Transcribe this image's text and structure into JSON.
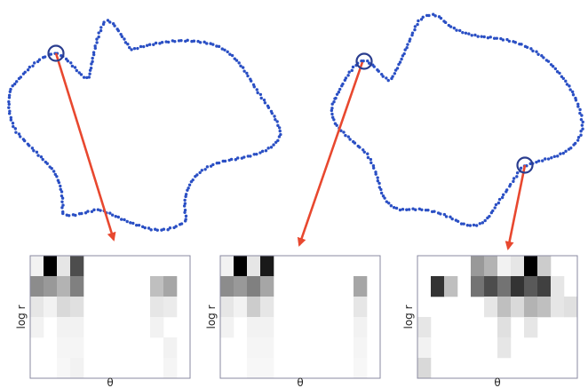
{
  "colors": {
    "contour_points": "#2a4fc4",
    "arrow": "#e8482f",
    "highlight_circle": "#2a3d8f",
    "histogram_border": "#8a8aa0",
    "ink": "#000000"
  },
  "panels": [
    {
      "ylabel": "log r",
      "xlabel": "θ",
      "bins": [
        [
          0.05,
          1.0,
          0.1,
          0.7,
          0,
          0,
          0,
          0,
          0,
          0,
          0,
          0
        ],
        [
          0.45,
          0.4,
          0.3,
          0.5,
          0,
          0,
          0,
          0,
          0,
          0.25,
          0.35,
          0
        ],
        [
          0.1,
          0.05,
          0.15,
          0.12,
          0,
          0,
          0,
          0,
          0,
          0.1,
          0.08,
          0
        ],
        [
          0.05,
          0,
          0.05,
          0.05,
          0,
          0,
          0,
          0,
          0,
          0.05,
          0,
          0
        ],
        [
          0,
          0,
          0.04,
          0.04,
          0,
          0,
          0,
          0,
          0,
          0,
          0.05,
          0
        ],
        [
          0,
          0,
          0.03,
          0.05,
          0,
          0,
          0,
          0,
          0,
          0,
          0.04,
          0
        ]
      ]
    },
    {
      "ylabel": "log r",
      "xlabel": "θ",
      "bins": [
        [
          0.05,
          1.0,
          0.1,
          0.9,
          0,
          0,
          0,
          0,
          0,
          0,
          0,
          0
        ],
        [
          0.45,
          0.4,
          0.5,
          0.35,
          0,
          0,
          0,
          0,
          0,
          0,
          0.35,
          0
        ],
        [
          0.1,
          0.05,
          0.2,
          0.1,
          0,
          0,
          0,
          0,
          0,
          0,
          0.1,
          0
        ],
        [
          0.05,
          0,
          0.05,
          0.05,
          0,
          0,
          0,
          0,
          0,
          0,
          0.05,
          0
        ],
        [
          0,
          0,
          0.04,
          0.04,
          0,
          0,
          0,
          0,
          0,
          0,
          0.04,
          0
        ],
        [
          0,
          0,
          0.03,
          0.03,
          0,
          0,
          0,
          0,
          0,
          0,
          0.03,
          0
        ]
      ]
    },
    {
      "ylabel": "log r",
      "xlabel": "θ",
      "bins": [
        [
          0,
          0,
          0,
          0,
          0.4,
          0.3,
          0.05,
          0.1,
          1.0,
          0.2,
          0,
          0
        ],
        [
          0,
          0.8,
          0.25,
          0,
          0.55,
          0.7,
          0.55,
          0.8,
          0.65,
          0.75,
          0.1,
          0
        ],
        [
          0,
          0,
          0,
          0,
          0,
          0.1,
          0.25,
          0.15,
          0.3,
          0.25,
          0.1,
          0.12
        ],
        [
          0.1,
          0,
          0,
          0,
          0,
          0,
          0.12,
          0,
          0.1,
          0,
          0,
          0
        ],
        [
          0.05,
          0,
          0,
          0,
          0,
          0,
          0.1,
          0,
          0,
          0,
          0,
          0
        ],
        [
          0.15,
          0,
          0,
          0,
          0,
          0,
          0,
          0,
          0,
          0,
          0,
          0
        ]
      ]
    }
  ]
}
